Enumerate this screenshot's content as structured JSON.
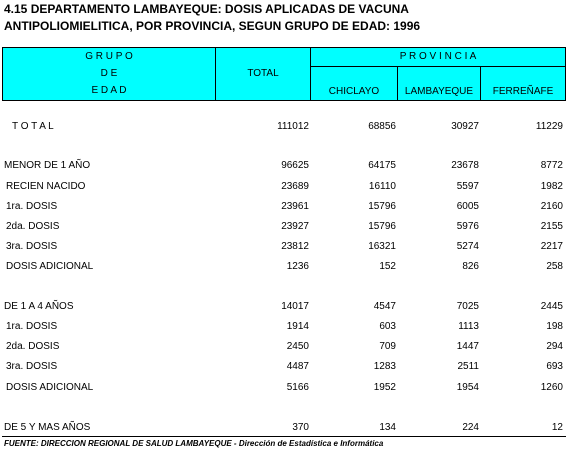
{
  "title": [
    "4.15 DEPARTAMENTO LAMBAYEQUE:  DOSIS APLICADAS DE VACUNA",
    "ANTIPOLIOMIELITICA, POR PROVINCIA, SEGUN GRUPO DE EDAD: 1996"
  ],
  "table": {
    "header": {
      "grupo": [
        "G R U P O",
        "D E",
        "E D A D"
      ],
      "total": "TOTAL",
      "provincia": "P R O V I N C I A",
      "provinces": [
        "CHICLAYO",
        "LAMBAYEQUE",
        "FERREÑAFE"
      ]
    },
    "rows": [
      [
        "T O T A L",
        111012,
        68856,
        30927,
        11229
      ],
      [
        "MENOR DE 1 AÑO",
        96625,
        64175,
        23678,
        8772
      ],
      [
        "RECIEN NACIDO",
        23689,
        16110,
        5597,
        1982
      ],
      [
        "1ra. DOSIS",
        23961,
        15796,
        6005,
        2160
      ],
      [
        "2da. DOSIS",
        23927,
        15796,
        5976,
        2155
      ],
      [
        "3ra. DOSIS",
        23812,
        16321,
        5274,
        2217
      ],
      [
        "DOSIS ADICIONAL",
        1236,
        152,
        826,
        258
      ],
      [
        "DE 1 A 4 AÑOS",
        14017,
        4547,
        7025,
        2445
      ],
      [
        "1ra. DOSIS",
        1914,
        603,
        1113,
        198
      ],
      [
        "2da. DOSIS",
        2450,
        709,
        1447,
        294
      ],
      [
        "3ra. DOSIS",
        4487,
        1283,
        2511,
        693
      ],
      [
        "DOSIS ADICIONAL",
        5166,
        1952,
        1954,
        1260
      ],
      [
        "DE 5 Y MAS AÑOS",
        370,
        134,
        224,
        12
      ]
    ]
  },
  "footer": "FUENTE: DIRECCION REGIONAL DE SALUD LAMBAYEQUE - Dirección de Estadística e Informática"
}
